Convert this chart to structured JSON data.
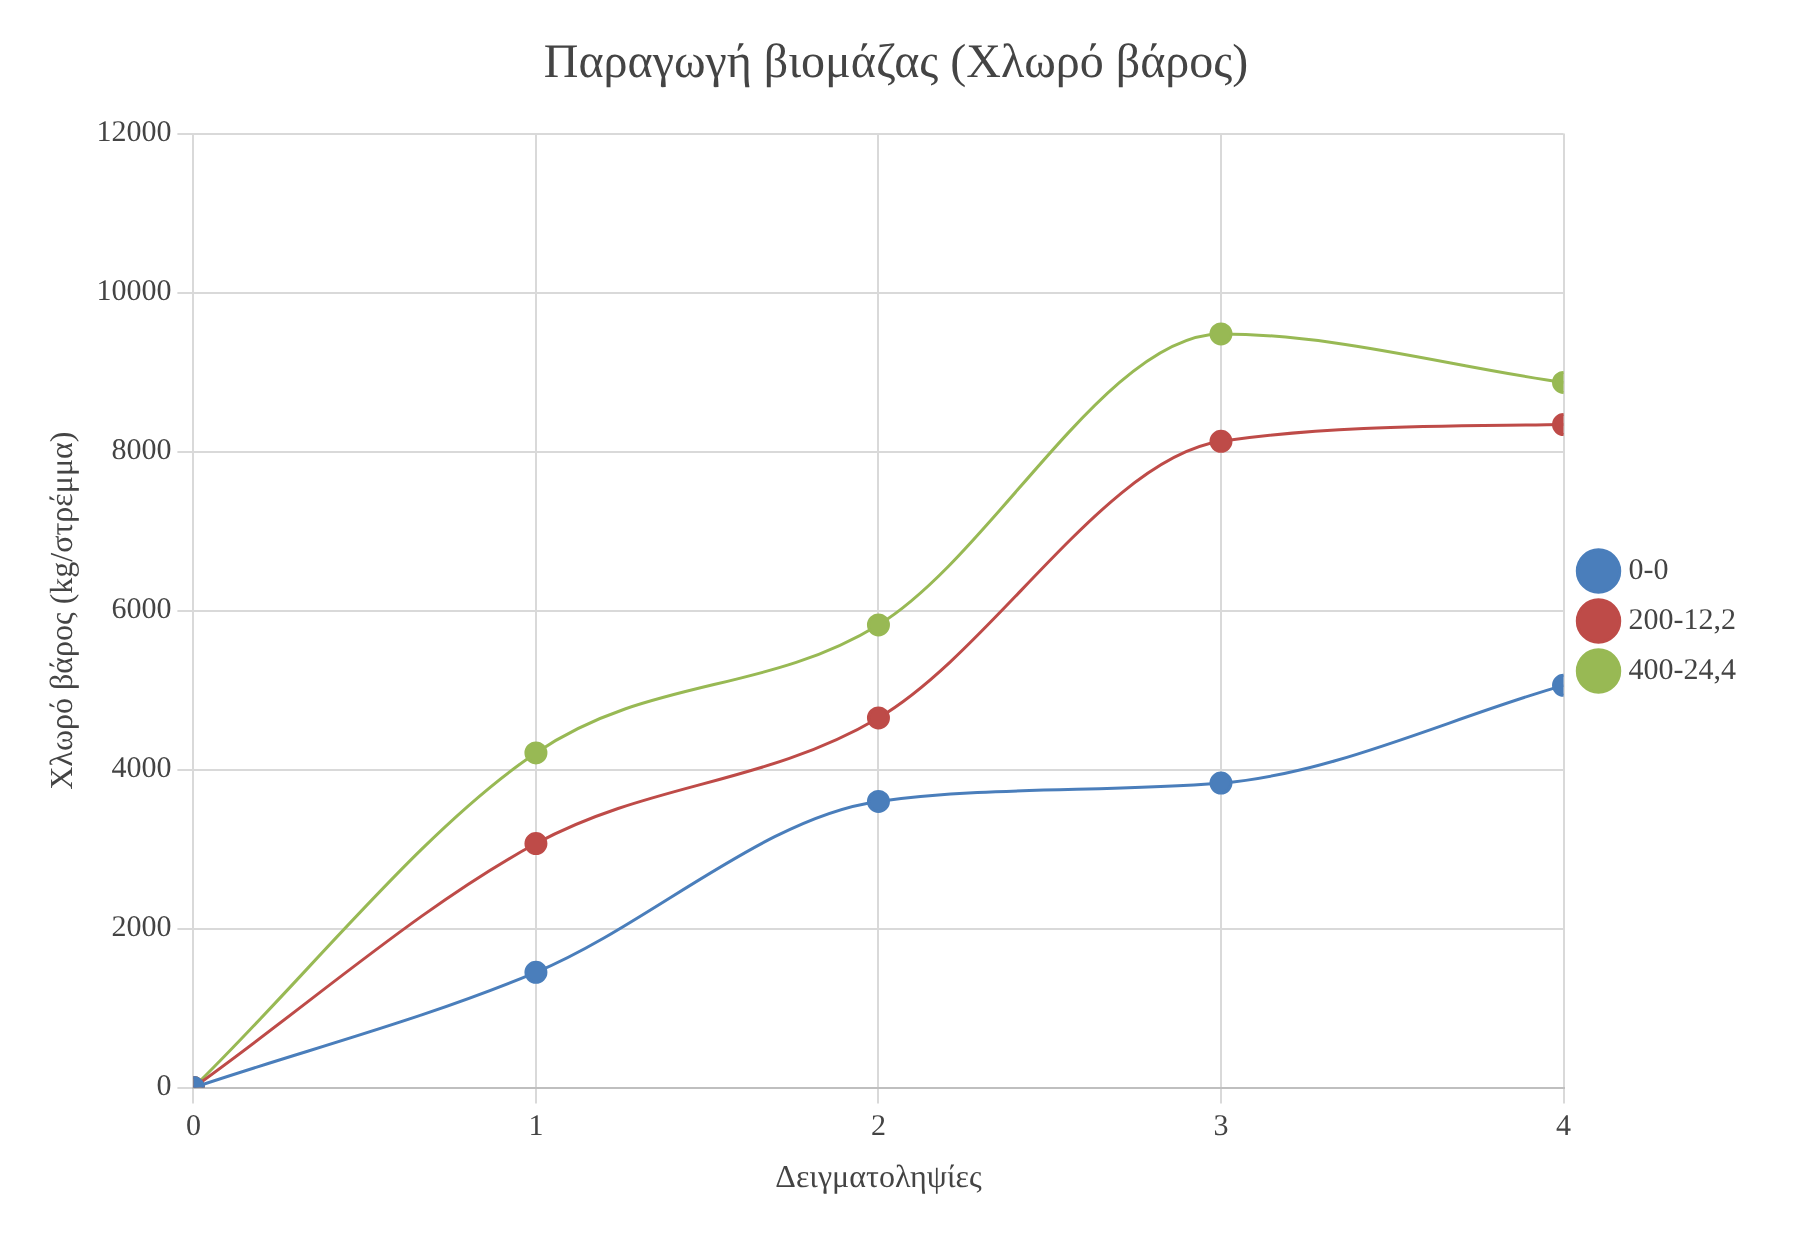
{
  "chart_data": {
    "type": "line",
    "title": "Παραγωγή βιομάζας (Χλωρό βάρος)",
    "xlabel": "Δειγματοληψίες",
    "ylabel": "Χλωρό βάρος (kg/στρέμμα)",
    "x": [
      0,
      1,
      2,
      3,
      4
    ],
    "xlim": [
      0,
      4
    ],
    "xticks": [
      0,
      1,
      2,
      3,
      4
    ],
    "ylim": [
      0,
      12000
    ],
    "yticks": [
      0,
      2000,
      4000,
      6000,
      8000,
      10000,
      12000
    ],
    "series": [
      {
        "name": "0-0",
        "color": "#4a7ebb",
        "values": [
          0,
          1450,
          3600,
          3830,
          5060
        ]
      },
      {
        "name": "200-12,2",
        "color": "#be4b48",
        "values": [
          0,
          3070,
          4650,
          8130,
          8340
        ]
      },
      {
        "name": "400-24,4",
        "color": "#98b954",
        "values": [
          0,
          4210,
          5820,
          9480,
          8870
        ]
      }
    ],
    "grid": true,
    "legend": "right",
    "marker": "circle",
    "line_style": "solid"
  }
}
